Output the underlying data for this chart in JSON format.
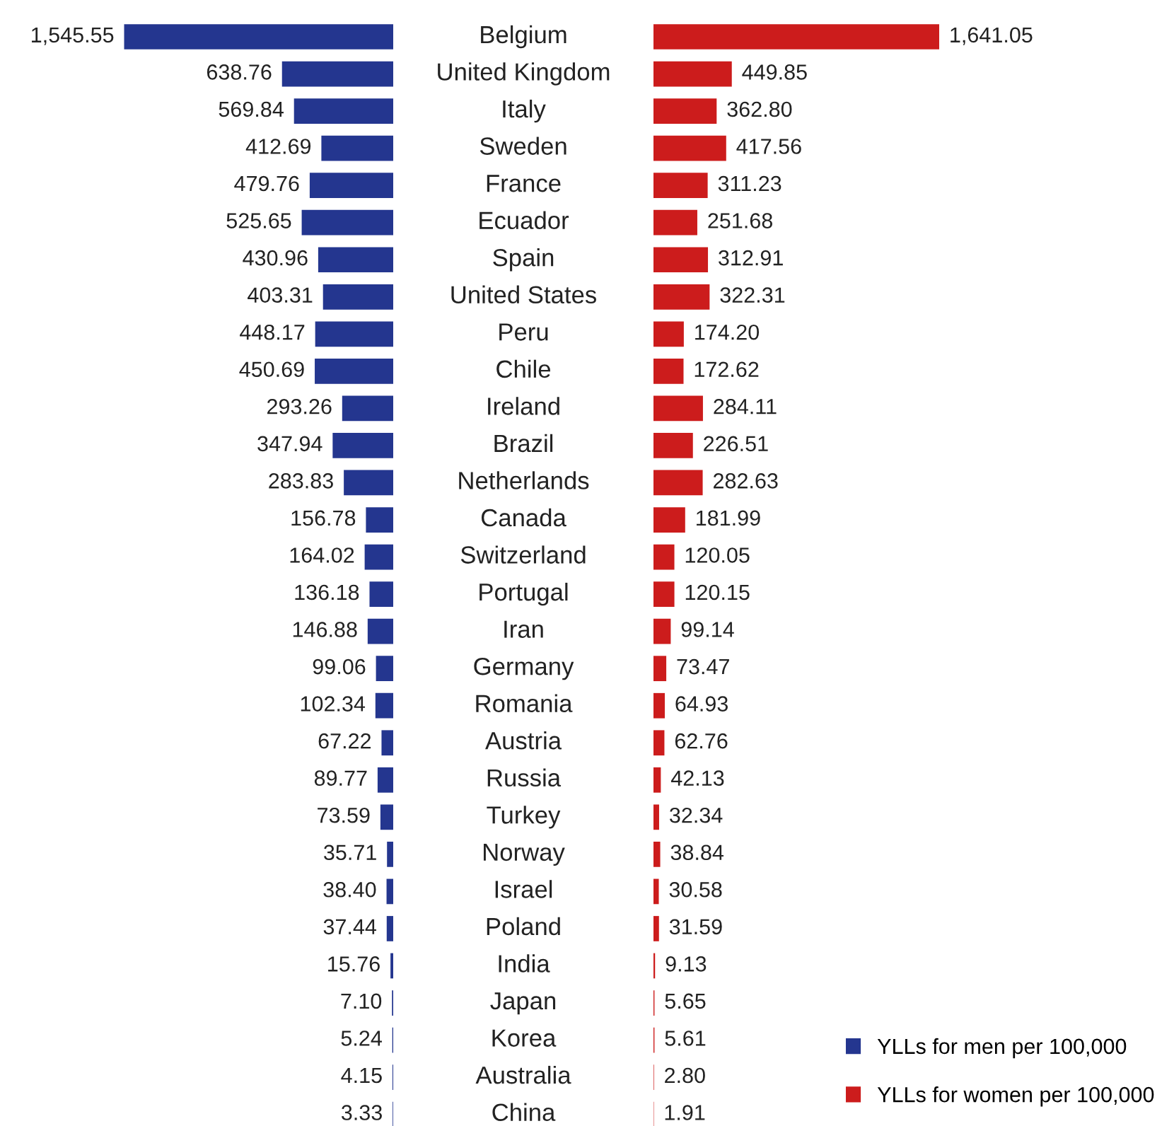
{
  "chart_data": [
    {
      "type": "bar",
      "orientation": "horizontal",
      "legend": "bottom right",
      "categories": [
        "Belgium",
        "United Kingdom",
        "Italy",
        "Sweden",
        "France",
        "Ecuador",
        "Spain",
        "United States",
        "Peru",
        "Chile",
        "Ireland",
        "Brazil",
        "Netherlands",
        "Canada",
        "Switzerland",
        "Portugal",
        "Iran",
        "Germany",
        "Romania",
        "Austria",
        "Russia",
        "Turkey",
        "Norway",
        "Israel",
        "Poland",
        "India",
        "Japan",
        "Korea",
        "Australia",
        "China"
      ],
      "series": [
        {
          "name": "YLLs for men per 100,000",
          "color": "#24368f",
          "values": [
            1545.55,
            638.76,
            569.84,
            412.69,
            479.76,
            525.65,
            430.96,
            403.31,
            448.17,
            450.69,
            293.26,
            347.94,
            283.83,
            156.78,
            164.02,
            136.18,
            146.88,
            99.06,
            102.34,
            67.22,
            89.77,
            73.59,
            35.71,
            38.4,
            37.44,
            15.76,
            7.1,
            5.24,
            4.15,
            3.33
          ],
          "value_labels": [
            "1,545.55",
            "638.76",
            "569.84",
            "412.69",
            "479.76",
            "525.65",
            "430.96",
            "403.31",
            "448.17",
            "450.69",
            "293.26",
            "347.94",
            "283.83",
            "156.78",
            "164.02",
            "136.18",
            "146.88",
            "99.06",
            "102.34",
            "67.22",
            "89.77",
            "73.59",
            "35.71",
            "38.40",
            "37.44",
            "15.76",
            "7.10",
            "5.24",
            "4.15",
            "3.33"
          ]
        }
      ]
    },
    {
      "type": "bar",
      "orientation": "horizontal",
      "legend": "bottom right",
      "categories": [
        null,
        null,
        null,
        null,
        null,
        null,
        null,
        null,
        null,
        null,
        null,
        null,
        null,
        null,
        null,
        null,
        null,
        null,
        null,
        null,
        null,
        null,
        null,
        null,
        null,
        null,
        null,
        null,
        null,
        null
      ],
      "series": [
        {
          "name": "YLLs for women per 100,000",
          "color": "#cc1c1c",
          "values": [
            1641.05,
            449.85,
            362.8,
            417.56,
            311.23,
            251.68,
            312.91,
            322.31,
            174.2,
            172.62,
            284.11,
            226.51,
            282.63,
            181.99,
            120.05,
            120.15,
            99.14,
            73.47,
            64.93,
            62.76,
            42.13,
            32.34,
            38.84,
            30.58,
            31.59,
            9.13,
            5.65,
            5.61,
            2.8,
            1.91
          ],
          "value_labels": [
            "1,641.05",
            "449.85",
            "362.80",
            "417.56",
            "311.23",
            "251.68",
            "312.91",
            "322.31",
            "174.20",
            "172.62",
            "284.11",
            "226.51",
            "282.63",
            "181.99",
            "120.05",
            "120.15",
            "99.14",
            "73.47",
            "64.93",
            "62.76",
            "42.13",
            "32.34",
            "38.84",
            "30.58",
            "31.59",
            "9.13",
            "5.65",
            "5.61",
            "2.80",
            "1.91"
          ]
        }
      ]
    }
  ]
}
